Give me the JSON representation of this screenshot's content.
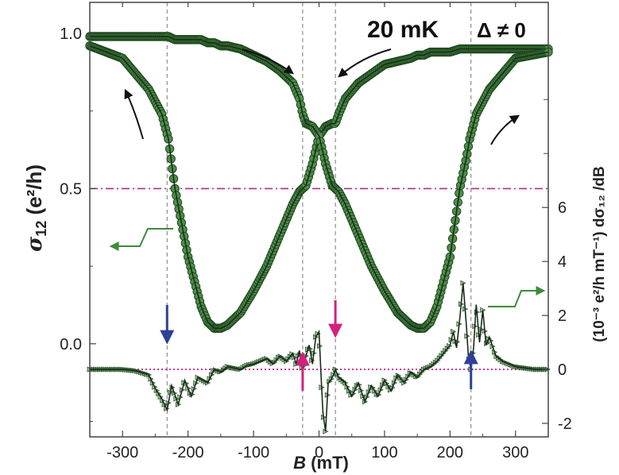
{
  "chart_data": {
    "type": "line",
    "title": "",
    "annotations": {
      "temperature": "20 mK",
      "gap": "Δ ≠ 0"
    },
    "x_axis": {
      "label_var": "B",
      "label_unit": " (mT)",
      "range": [
        -350,
        350
      ],
      "ticks": [
        -300,
        -200,
        -100,
        0,
        100,
        200,
        300
      ],
      "tick_labels": [
        "-300",
        "-200",
        "-100",
        "0",
        "100",
        "200",
        "300"
      ]
    },
    "y_axis_left": {
      "label_sym": "σ",
      "label_sub": "12",
      "label_unit": " (e²/h)",
      "range": [
        -0.3,
        1.1
      ],
      "ticks": [
        0.0,
        0.5,
        1.0
      ],
      "tick_labels": [
        "0.0",
        "0.5",
        "1.0"
      ]
    },
    "y_axis_right": {
      "label_text": "(10⁻³ e²/h mT⁻¹) dσ₁₂ /dB",
      "range": [
        -2.5,
        13.6
      ],
      "ticks": [
        -2,
        0,
        2,
        4,
        6
      ],
      "tick_labels": [
        "-2",
        "0",
        "2",
        "4",
        "6"
      ]
    },
    "reference_lines": {
      "half_quantum_sigma": 0.5,
      "zero_derivative": 0,
      "vertical_B": [
        -232,
        -25,
        25,
        232
      ]
    },
    "series": [
      {
        "axis": "left",
        "x": [
          -350,
          -300,
          -260,
          -240,
          -230,
          -220,
          -200,
          -180,
          -170,
          -160,
          -150,
          -140,
          -120,
          -100,
          -80,
          -60,
          -40,
          -30,
          -25,
          -20,
          -10,
          0,
          10,
          20,
          25,
          30,
          40,
          60,
          80,
          100,
          120,
          140,
          150,
          160,
          170,
          180,
          200,
          215,
          225,
          230,
          240,
          260,
          300,
          350
        ],
        "y": [
          0.96,
          0.92,
          0.82,
          0.74,
          0.66,
          0.5,
          0.28,
          0.12,
          0.07,
          0.05,
          0.05,
          0.06,
          0.1,
          0.17,
          0.25,
          0.35,
          0.45,
          0.49,
          0.5,
          0.51,
          0.58,
          0.67,
          0.7,
          0.71,
          0.71,
          0.74,
          0.79,
          0.84,
          0.87,
          0.9,
          0.91,
          0.92,
          0.93,
          0.93,
          0.94,
          0.94,
          0.94,
          0.95,
          0.95,
          0.95,
          0.95,
          0.95,
          0.95,
          0.95
        ]
      },
      {
        "axis": "left",
        "x": [
          -350,
          -300,
          -260,
          -240,
          -230,
          -220,
          -200,
          -180,
          -170,
          -160,
          -150,
          -140,
          -120,
          -100,
          -80,
          -60,
          -40,
          -30,
          -25,
          -20,
          -10,
          0,
          10,
          20,
          25,
          30,
          40,
          60,
          80,
          100,
          120,
          140,
          150,
          160,
          170,
          180,
          200,
          215,
          225,
          230,
          240,
          260,
          300,
          350
        ],
        "y": [
          0.99,
          0.99,
          0.99,
          0.99,
          0.99,
          0.98,
          0.98,
          0.98,
          0.97,
          0.97,
          0.96,
          0.96,
          0.95,
          0.93,
          0.91,
          0.88,
          0.84,
          0.79,
          0.74,
          0.71,
          0.7,
          0.67,
          0.58,
          0.51,
          0.5,
          0.49,
          0.45,
          0.35,
          0.25,
          0.17,
          0.1,
          0.06,
          0.05,
          0.05,
          0.07,
          0.12,
          0.28,
          0.5,
          0.6,
          0.66,
          0.74,
          0.82,
          0.92,
          0.94
        ]
      },
      {
        "axis": "right",
        "x": [
          -350,
          -300,
          -280,
          -260,
          -250,
          -240,
          -232,
          -225,
          -215,
          -205,
          -195,
          -185,
          -170,
          -160,
          -150,
          -140,
          -130,
          -120,
          -110,
          -100,
          -90,
          -80,
          -70,
          -60,
          -50,
          -40,
          -35,
          -30,
          -25,
          -20,
          -15,
          -10,
          -5,
          0,
          3,
          6,
          10,
          14,
          18,
          22,
          25,
          30,
          40,
          50,
          60,
          70,
          80,
          90,
          100,
          110,
          120,
          130,
          140,
          150,
          160,
          170,
          180,
          190,
          200,
          205,
          210,
          215,
          220,
          225,
          228,
          232,
          236,
          240,
          245,
          250,
          255,
          260,
          270,
          280,
          300,
          330,
          350
        ],
        "y": [
          0.0,
          0.0,
          -0.05,
          -0.2,
          -0.7,
          -1.1,
          -1.5,
          -0.6,
          -1.3,
          -0.4,
          -1.0,
          -0.3,
          -0.5,
          0.0,
          -0.1,
          0.1,
          0.05,
          0.0,
          0.15,
          0.2,
          0.3,
          0.4,
          0.2,
          0.5,
          0.3,
          0.6,
          0.2,
          0.7,
          -0.1,
          0.5,
          0.9,
          0.2,
          1.2,
          1.4,
          -0.2,
          -1.6,
          -2.3,
          -0.5,
          -0.4,
          -0.2,
          0.0,
          -0.3,
          -0.5,
          -1.0,
          -0.5,
          -1.2,
          -0.6,
          -1.0,
          -0.4,
          -0.8,
          -0.2,
          -0.5,
          -0.1,
          -0.3,
          0.0,
          0.1,
          0.3,
          0.6,
          0.9,
          1.4,
          0.8,
          1.9,
          3.2,
          1.6,
          0.5,
          0.0,
          0.8,
          2.4,
          1.0,
          2.2,
          0.9,
          1.2,
          0.5,
          0.3,
          0.1,
          0.0,
          0.0
        ]
      }
    ],
    "colors": {
      "marker_fill": "#4e8f4a",
      "marker_edge": "#1f4a1e",
      "curve": "#1b2a1b",
      "half_line": "#b0307f",
      "zero_line": "#d0359a",
      "arrow_blue": "#2f3f97",
      "arrow_magenta": "#d4207f",
      "legend_arrow": "#3f8a3b"
    }
  }
}
